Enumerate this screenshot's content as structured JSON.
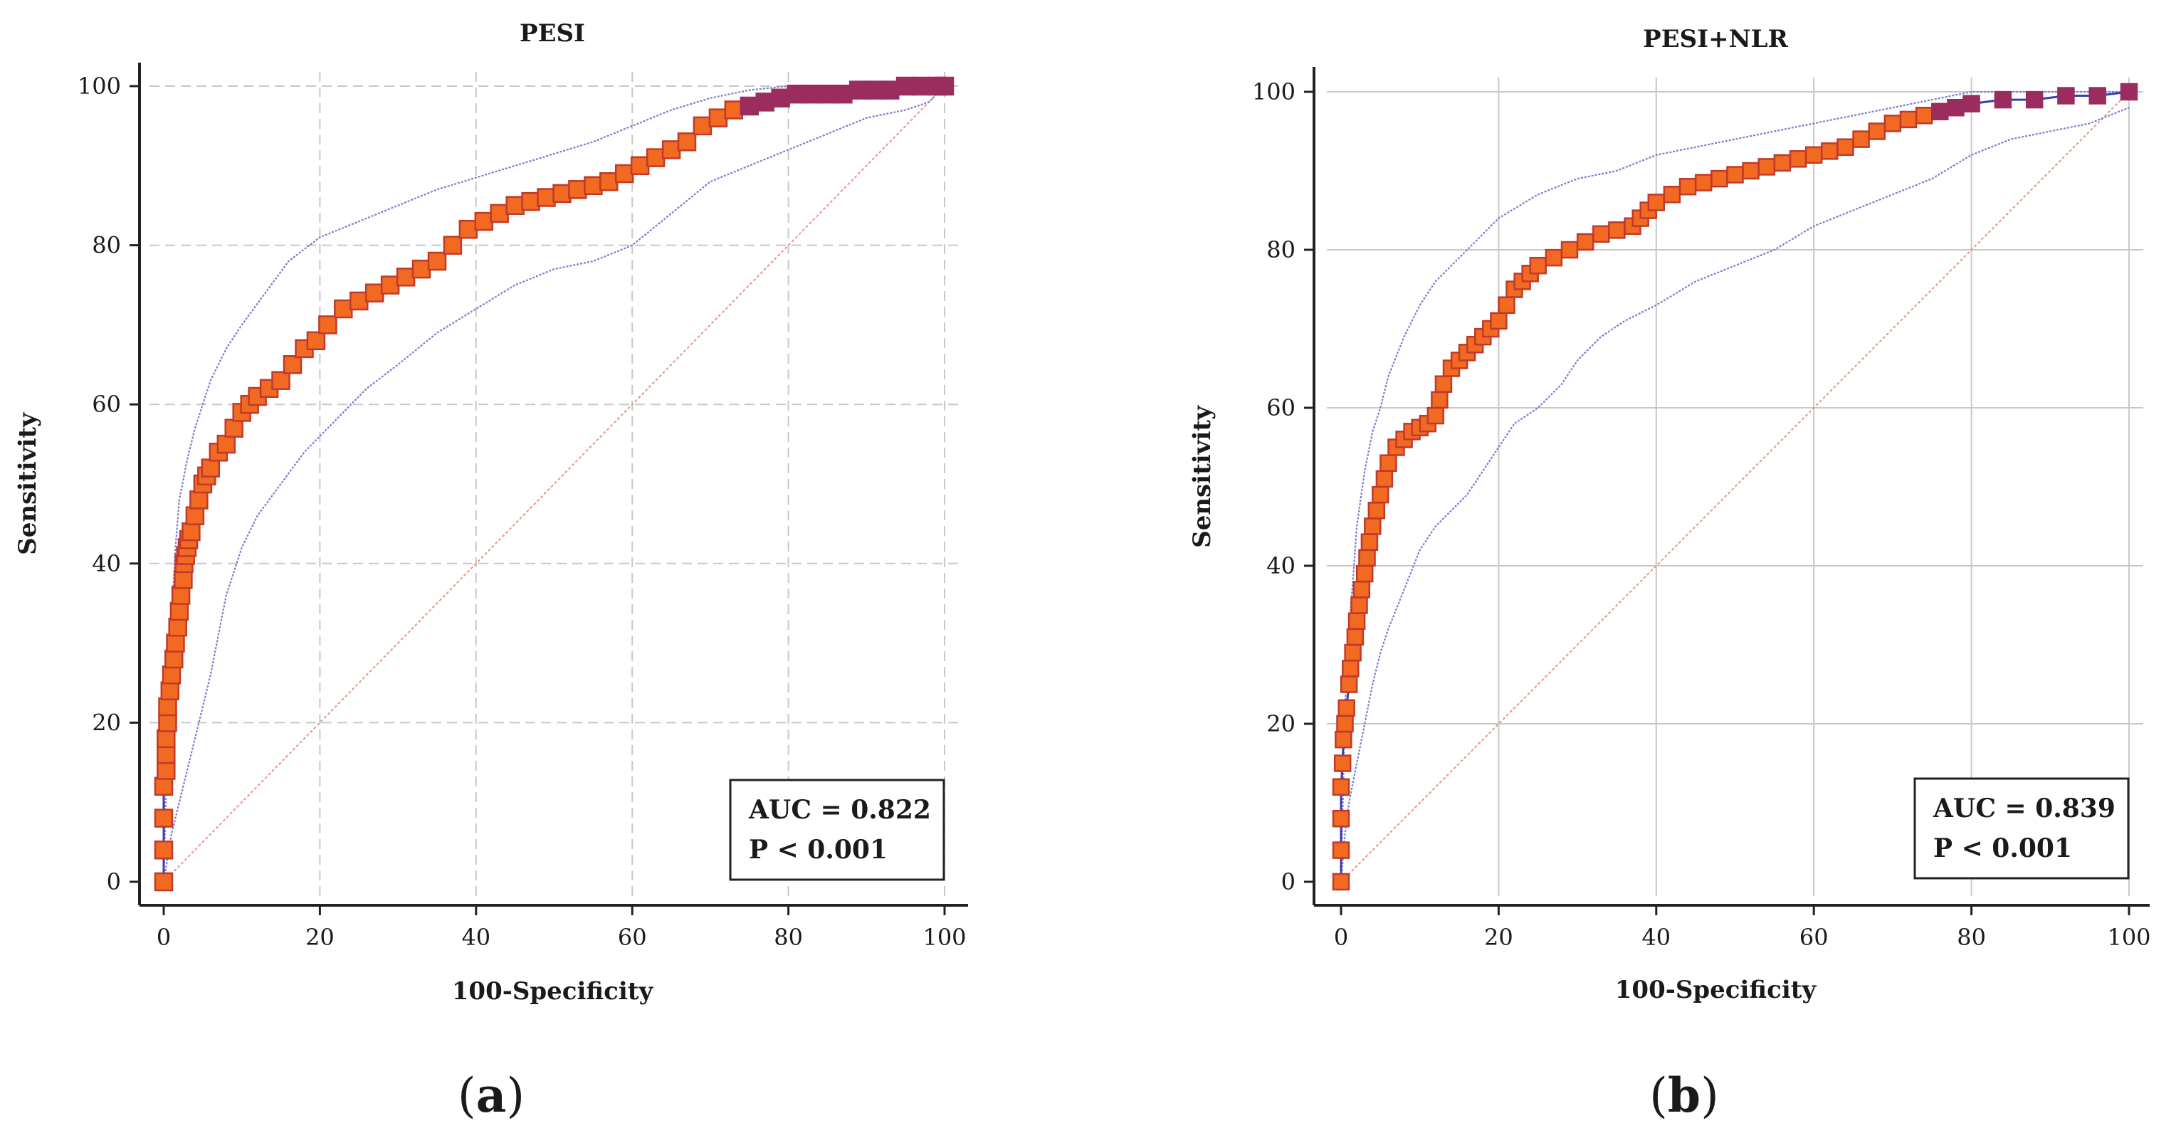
{
  "chart_data": [
    {
      "type": "line",
      "title": "PESI",
      "xlabel": "100-Specificity",
      "ylabel": "Sensitivity",
      "xlim": [
        0,
        100
      ],
      "ylim": [
        0,
        100
      ],
      "xticks": [
        "0",
        "20",
        "40",
        "60",
        "80",
        "100"
      ],
      "yticks": [
        "0",
        "20",
        "40",
        "60",
        "80",
        "100"
      ],
      "grid": "dashed",
      "panel_label": {
        "open": "(",
        "letter": "a",
        "close": ")"
      },
      "annotation": {
        "auc": "AUC = 0.822",
        "p": "P < 0.001",
        "placement": "bottom-right"
      },
      "colors": {
        "marker_fill": "#f26a21",
        "marker_edge": "#c0392b",
        "marker_edge_late": "#9b2c5e",
        "ci_band": "#7b7bd0",
        "reference_line": "#e8948c",
        "curve_line": "#3b3bb0"
      },
      "series": [
        {
          "name": "ROC curve",
          "x": [
            0,
            0,
            0,
            0,
            0.3,
            0.3,
            0.3,
            0.5,
            0.5,
            0.8,
            1.0,
            1.3,
            1.5,
            1.8,
            2.0,
            2.2,
            2.5,
            2.6,
            2.8,
            3.0,
            3.2,
            3.5,
            4.0,
            4.5,
            5.0,
            5.5,
            6.0,
            7.0,
            8.0,
            9.0,
            10.0,
            11.0,
            12.0,
            13.5,
            15.0,
            16.5,
            18.0,
            19.5,
            21.0,
            23.0,
            25.0,
            27.0,
            29.0,
            31.0,
            33.0,
            35.0,
            37.0,
            39.0,
            41.0,
            43.0,
            45.0,
            47.0,
            49.0,
            51.0,
            53.0,
            55.0,
            57.0,
            59.0,
            61.0,
            63.0,
            65.0,
            67.0,
            69.0,
            71.0,
            73.0,
            75.0,
            77.0,
            79.0,
            81.0,
            83.0,
            85.0,
            87.0,
            89.0,
            91.0,
            93.0,
            95.0,
            97.0,
            99.0,
            100
          ],
          "y": [
            0,
            4,
            8,
            12,
            14,
            16,
            18,
            20,
            22,
            24,
            26,
            28,
            30,
            32,
            34,
            36,
            38,
            40,
            41,
            42,
            43,
            44,
            46,
            48,
            50,
            51,
            52,
            54,
            55,
            57,
            59,
            60,
            61,
            62,
            63,
            65,
            67,
            68,
            70,
            72,
            73,
            74,
            75,
            76,
            77,
            78,
            80,
            82,
            83,
            84,
            85,
            85.5,
            86,
            86.5,
            87,
            87.5,
            88,
            89,
            90,
            91,
            92,
            93,
            95,
            96,
            97,
            97.5,
            98,
            98.5,
            99,
            99,
            99,
            99,
            99.5,
            99.5,
            99.5,
            100,
            100,
            100,
            100
          ]
        },
        {
          "name": "95% CI upper",
          "x": [
            0,
            0.5,
            1,
            1.5,
            2,
            3,
            4,
            5,
            6,
            8,
            10,
            13,
            16,
            20,
            25,
            30,
            35,
            40,
            45,
            50,
            55,
            60,
            65,
            70,
            75,
            80,
            85,
            90,
            95,
            100
          ],
          "y": [
            0,
            20,
            33,
            42,
            48,
            53,
            57,
            60,
            63,
            67,
            70,
            74,
            78,
            81,
            83,
            85,
            87,
            88.5,
            90,
            91.5,
            93,
            95,
            97,
            98.5,
            99.5,
            100,
            100,
            100,
            100,
            100
          ]
        },
        {
          "name": "95% CI lower",
          "x": [
            0,
            0.5,
            1,
            2,
            3,
            4,
            5,
            6,
            7,
            8,
            10,
            12,
            15,
            18,
            22,
            26,
            30,
            35,
            40,
            45,
            50,
            55,
            60,
            65,
            70,
            75,
            80,
            85,
            90,
            95,
            98,
            100
          ],
          "y": [
            0,
            3,
            6,
            10,
            14,
            18,
            22,
            26,
            31,
            36,
            42,
            46,
            50,
            54,
            58,
            62,
            65,
            69,
            72,
            75,
            77,
            78,
            80,
            84,
            88,
            90,
            92,
            94,
            96,
            97,
            98,
            100
          ]
        },
        {
          "name": "Reference line",
          "x": [
            0,
            100
          ],
          "y": [
            0,
            100
          ]
        }
      ]
    },
    {
      "type": "line",
      "title": "PESI+NLR",
      "xlabel": "100-Specificity",
      "ylabel": "Sensitivity",
      "xlim": [
        0,
        100
      ],
      "ylim": [
        0,
        100
      ],
      "xticks": [
        "0",
        "20",
        "40",
        "60",
        "80",
        "100"
      ],
      "yticks": [
        "0",
        "20",
        "40",
        "60",
        "80",
        "100"
      ],
      "grid": "solid",
      "panel_label": {
        "open": "(",
        "letter": "b",
        "close": ")"
      },
      "annotation": {
        "auc": "AUC = 0.839",
        "p": "P < 0.001",
        "placement": "bottom-right"
      },
      "colors": {
        "marker_fill": "#f26a21",
        "marker_edge": "#c0392b",
        "marker_edge_late": "#9b2c5e",
        "ci_band": "#7b7bd0",
        "reference_line": "#e8948c",
        "curve_line": "#3b3bb0"
      },
      "series": [
        {
          "name": "ROC curve",
          "x": [
            0,
            0,
            0,
            0,
            0.2,
            0.3,
            0.5,
            0.7,
            1.0,
            1.2,
            1.5,
            1.8,
            2.0,
            2.3,
            2.6,
            3.0,
            3.3,
            3.6,
            4.0,
            4.5,
            5.0,
            5.5,
            6.0,
            7.0,
            8.0,
            9.0,
            10.0,
            11.0,
            12.0,
            12.5,
            13.0,
            14.0,
            15.0,
            16.0,
            17.0,
            18.0,
            19.0,
            20.0,
            21.0,
            22.0,
            23.0,
            24.0,
            25.0,
            27.0,
            29.0,
            31.0,
            33.0,
            35.0,
            37.0,
            38.0,
            39.0,
            40.0,
            42.0,
            44.0,
            46.0,
            48.0,
            50.0,
            52.0,
            54.0,
            56.0,
            58.0,
            60.0,
            62.0,
            64.0,
            66.0,
            68.0,
            70.0,
            72.0,
            74.0,
            76.0,
            78.0,
            80.0,
            84.0,
            88.0,
            92.0,
            96.0,
            100
          ],
          "y": [
            0,
            4,
            8,
            12,
            15,
            18,
            20,
            22,
            25,
            27,
            29,
            31,
            33,
            35,
            37,
            39,
            41,
            43,
            45,
            47,
            49,
            51,
            53,
            55,
            56,
            57,
            57.5,
            58,
            59,
            61,
            63,
            65,
            66,
            67,
            68,
            69,
            70,
            71,
            73,
            75,
            76,
            77,
            78,
            79,
            80,
            81,
            82,
            82.5,
            83,
            84,
            85,
            86,
            87,
            88,
            88.5,
            89,
            89.5,
            90,
            90.5,
            91,
            91.5,
            92,
            92.5,
            93,
            94,
            95,
            96,
            96.5,
            97,
            97.5,
            98,
            98.5,
            99,
            99,
            99.5,
            99.5,
            100
          ]
        },
        {
          "name": "95% CI upper",
          "x": [
            0,
            0.5,
            1,
            1.5,
            2,
            3,
            4,
            5,
            6,
            8,
            10,
            12,
            15,
            18,
            20,
            25,
            30,
            35,
            40,
            45,
            50,
            55,
            60,
            65,
            70,
            75,
            80,
            85,
            90,
            95,
            100
          ],
          "y": [
            0,
            22,
            32,
            38,
            45,
            52,
            57,
            60,
            64,
            69,
            73,
            76,
            79,
            82,
            84,
            87,
            89,
            90,
            92,
            93,
            94,
            95,
            96,
            97,
            98,
            99,
            100,
            100,
            100,
            100,
            100
          ]
        },
        {
          "name": "95% CI lower",
          "x": [
            0,
            0.5,
            1,
            2,
            3,
            4,
            5,
            6,
            8,
            10,
            12,
            14,
            16,
            18,
            20,
            22,
            25,
            28,
            30,
            33,
            36,
            40,
            45,
            50,
            55,
            60,
            65,
            70,
            75,
            80,
            85,
            90,
            95,
            100
          ],
          "y": [
            0,
            6,
            10,
            15,
            20,
            25,
            29,
            32,
            37,
            42,
            45,
            47,
            49,
            52,
            55,
            58,
            60,
            63,
            66,
            69,
            71,
            73,
            76,
            78,
            80,
            83,
            85,
            87,
            89,
            92,
            94,
            95,
            96,
            98
          ]
        },
        {
          "name": "Reference line",
          "x": [
            0,
            100
          ],
          "y": [
            0,
            100
          ]
        }
      ]
    }
  ]
}
